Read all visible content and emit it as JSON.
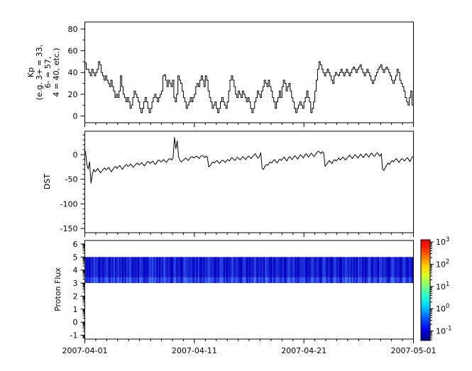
{
  "figure": {
    "background": "#ffffff",
    "line_color": "#000000",
    "axis_color": "#000000"
  },
  "x_axis": {
    "range_days": [
      0,
      30
    ],
    "major_tick_days": [
      0,
      10,
      20,
      30
    ],
    "minor_tick_interval_days": 1,
    "tick_labels": [
      "2007-04-01",
      "2007-04-11",
      "2007-04-21",
      "2007-05-01"
    ]
  },
  "chart_data": [
    {
      "type": "line",
      "style": "steps",
      "name": "kp-index-panel",
      "ylabel_lines": [
        "Kp",
        "(e.g. 3+ = 33,",
        "6- = 57,",
        "4 = 40, etc.)"
      ],
      "yticks": [
        0,
        20,
        40,
        60,
        80
      ],
      "minor_ytick_step": 10,
      "ylim": [
        -6.2,
        86.5
      ],
      "x_step_hours": 3,
      "values": [
        49,
        43,
        43,
        40,
        37,
        43,
        40,
        37,
        40,
        43,
        50,
        47,
        40,
        37,
        33,
        37,
        33,
        30,
        27,
        33,
        27,
        23,
        17,
        20,
        17,
        23,
        37,
        27,
        20,
        17,
        13,
        17,
        13,
        7,
        10,
        17,
        23,
        20,
        17,
        13,
        7,
        3,
        7,
        13,
        17,
        13,
        7,
        3,
        7,
        13,
        17,
        20,
        17,
        13,
        17,
        20,
        23,
        37,
        38,
        33,
        27,
        33,
        30,
        27,
        33,
        17,
        13,
        20,
        37,
        33,
        30,
        23,
        17,
        13,
        7,
        10,
        13,
        17,
        13,
        17,
        20,
        27,
        30,
        27,
        33,
        37,
        33,
        27,
        37,
        33,
        23,
        17,
        13,
        7,
        10,
        13,
        7,
        3,
        7,
        13,
        17,
        13,
        10,
        7,
        13,
        23,
        33,
        37,
        33,
        27,
        20,
        17,
        23,
        20,
        17,
        23,
        20,
        17,
        13,
        17,
        13,
        7,
        3,
        7,
        13,
        17,
        23,
        20,
        17,
        23,
        27,
        33,
        30,
        27,
        33,
        27,
        23,
        17,
        13,
        7,
        13,
        17,
        23,
        17,
        27,
        33,
        30,
        23,
        27,
        30,
        23,
        17,
        13,
        7,
        3,
        7,
        10,
        13,
        10,
        7,
        13,
        17,
        23,
        17,
        13,
        3,
        7,
        13,
        23,
        33,
        43,
        50,
        47,
        43,
        40,
        37,
        40,
        43,
        40,
        37,
        33,
        30,
        37,
        40,
        38,
        37,
        40,
        43,
        40,
        37,
        40,
        43,
        40,
        37,
        40,
        43,
        45,
        43,
        40,
        43,
        45,
        47,
        43,
        40,
        37,
        40,
        43,
        40,
        37,
        33,
        30,
        33,
        37,
        40,
        43,
        45,
        47,
        43,
        40,
        43,
        45,
        43,
        40,
        37,
        33,
        30,
        33,
        37,
        43,
        40,
        33,
        30,
        27,
        23,
        17,
        13,
        10,
        17,
        23,
        10
      ]
    },
    {
      "type": "line",
      "style": "line",
      "name": "dst-panel",
      "ylabel": "DST",
      "yticks": [
        0,
        -50,
        -100,
        -150
      ],
      "minor_ytick_step": 10,
      "ylim": [
        -158.5,
        47.5
      ],
      "x_step_hours": 3,
      "values": [
        7,
        -20,
        -29,
        -15,
        -58,
        -40,
        -30,
        -35,
        -32,
        -28,
        -33,
        -37,
        -33,
        -30,
        -27,
        -31,
        -29,
        -26,
        -31,
        -35,
        -30,
        -26,
        -24,
        -28,
        -25,
        -22,
        -26,
        -30,
        -25,
        -22,
        -20,
        -24,
        -22,
        -19,
        -23,
        -26,
        -22,
        -19,
        -17,
        -21,
        -19,
        -16,
        -20,
        -23,
        -19,
        -15,
        -14,
        -18,
        -16,
        -13,
        -17,
        -20,
        -16,
        -12,
        -11,
        -15,
        -13,
        -10,
        -13,
        -16,
        -12,
        -9,
        -8,
        -11,
        -5,
        35,
        12,
        28,
        -5,
        -12,
        -15,
        -12,
        -10,
        -7,
        -9,
        -12,
        -8,
        -5,
        -4,
        -7,
        -5,
        -3,
        -5,
        -8,
        -4,
        -2,
        -3,
        -6,
        -3,
        -5,
        -25,
        -22,
        -18,
        -15,
        -17,
        -14,
        -12,
        -15,
        -18,
        -14,
        -11,
        -13,
        -16,
        -12,
        -10,
        -13,
        -9,
        -6,
        -9,
        -12,
        -8,
        -5,
        -8,
        -11,
        -7,
        -4,
        -7,
        -10,
        -6,
        -3,
        -5,
        -8,
        -4,
        -1,
        2,
        -3,
        -7,
        -4,
        4,
        -28,
        -30,
        -24,
        -20,
        -22,
        -18,
        -15,
        -17,
        -13,
        -10,
        -14,
        -17,
        -12,
        -9,
        -12,
        -8,
        -5,
        -9,
        -13,
        -8,
        -4,
        -7,
        -10,
        -5,
        -2,
        -6,
        -9,
        -4,
        0,
        -3,
        -7,
        -2,
        2,
        -2,
        -5,
        0,
        3,
        -1,
        -4,
        0,
        4,
        7,
        5,
        2,
        6,
        3,
        -24,
        -20,
        -16,
        -12,
        -15,
        -18,
        -13,
        -10,
        -13,
        -10,
        -7,
        -11,
        -8,
        -5,
        -8,
        -11,
        -7,
        -4,
        -1,
        -5,
        -8,
        -3,
        0,
        -4,
        -7,
        -3,
        1,
        -3,
        -6,
        -1,
        2,
        -2,
        -5,
        0,
        3,
        -1,
        -4,
        1,
        4,
        0,
        -3,
        2,
        -30,
        -32,
        -26,
        -21,
        -17,
        -20,
        -15,
        -12,
        -15,
        -11,
        -8,
        -12,
        -16,
        -11,
        -8,
        -10,
        -13,
        -9,
        -6,
        -10,
        -14,
        -8,
        -3
      ]
    },
    {
      "type": "heatmap",
      "name": "proton-flux-panel",
      "ylabel": "Proton Flux",
      "yticks": [
        -1,
        0,
        1,
        2,
        3,
        4,
        5,
        6
      ],
      "minor_yticks": "log-decade",
      "ylim": [
        -1.3,
        6.27
      ],
      "band": {
        "y_min": 3,
        "y_max": 5
      },
      "spectrogram_colors": {
        "dark": [
          0,
          0,
          190
        ],
        "bright": [
          70,
          110,
          255
        ]
      },
      "stripe_intensities": "41305284620513473052814625041638513240654021375836140529524301761430286543521607204153863520416761403258245310465031426713425086420513643152047625613045462031573254106851430267241053763625140745130268215430763542016852341057412530",
      "colorbar": {
        "tick_exponents": [
          3,
          2,
          1,
          0,
          -1
        ],
        "tick_base": "10",
        "log_range": [
          -1.43,
          3.1
        ],
        "colormap": "jet",
        "gradient_stops": [
          [
            0.0,
            "#000084"
          ],
          [
            0.11,
            "#0000f0"
          ],
          [
            0.23,
            "#0060ff"
          ],
          [
            0.34,
            "#00d0ff"
          ],
          [
            0.45,
            "#2effc8"
          ],
          [
            0.55,
            "#86ff70"
          ],
          [
            0.64,
            "#d8ff26"
          ],
          [
            0.74,
            "#ffd000"
          ],
          [
            0.84,
            "#ff6c00"
          ],
          [
            0.93,
            "#ff1e00"
          ],
          [
            1.0,
            "#e60000"
          ]
        ]
      }
    }
  ]
}
